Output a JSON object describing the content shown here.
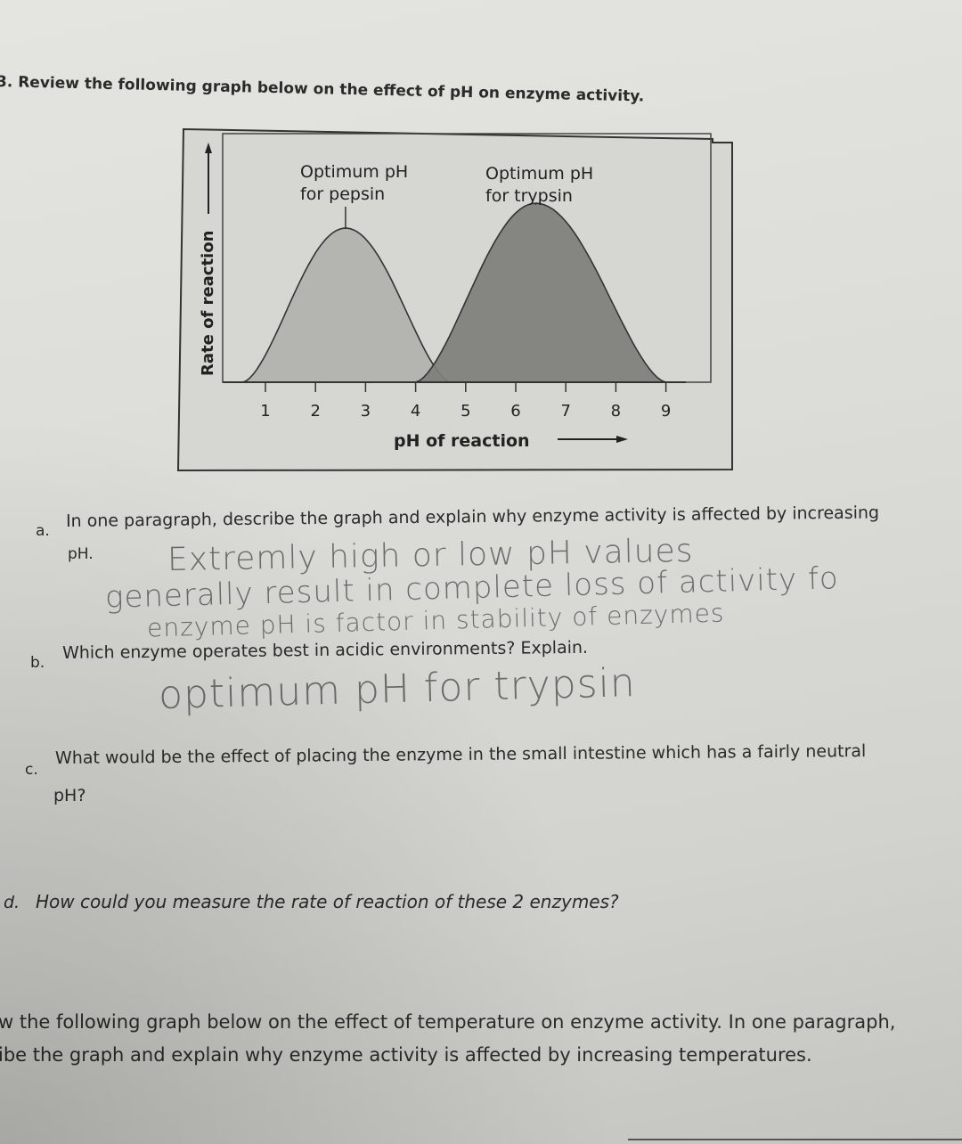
{
  "question3": {
    "prompt": "3. Review the following graph below on the effect of pH on enzyme activity."
  },
  "graph": {
    "ylabel": "Rate of reaction",
    "xlabel": "pH of reaction",
    "xticks": [
      "1",
      "2",
      "3",
      "4",
      "5",
      "6",
      "7",
      "8",
      "9"
    ],
    "annotations": [
      {
        "line1": "Optimum pH",
        "line2": "for pepsin"
      },
      {
        "line1": "Optimum pH",
        "line2": "for trypsin"
      }
    ],
    "colors": {
      "pepsin_fill": "#b4b4b0",
      "trypsin_fill": "#7e7e7a",
      "frame": "#333333",
      "background": "#d6d6d2"
    }
  },
  "chart_data": {
    "type": "area",
    "xlabel": "pH of reaction",
    "ylabel": "Rate of reaction",
    "xlim": [
      0,
      9.4
    ],
    "ylim": [
      0,
      1
    ],
    "series": [
      {
        "name": "pepsin",
        "start": 0.55,
        "peak_x": 2.6,
        "peak_rate": 0.62,
        "end": 4.7
      },
      {
        "name": "trypsin",
        "start": 4.0,
        "peak_x": 6.4,
        "peak_rate": 0.72,
        "end": 9.0
      }
    ]
  },
  "part_a": {
    "label": "a.",
    "question_line1": "In one paragraph, describe the graph and explain why enzyme activity is affected by increasing",
    "question_line2": "pH.",
    "answer_lines": [
      "Extremly high or low pH values",
      "generally result in complete loss of activity fo",
      "enzyme pH is factor in stability of enzymes"
    ]
  },
  "part_b": {
    "label": "b.",
    "question": "Which enzyme operates best in acidic environments? Explain.",
    "answer": "optimum pH for trypsin"
  },
  "part_c": {
    "label": "c.",
    "question_line1": "What would be the effect of placing the enzyme in the small intestine which has a fairly neutral",
    "question_line2": "pH?"
  },
  "part_d": {
    "label": "d.",
    "question": "How could you measure the rate of reaction of these 2 enzymes?"
  },
  "question4": {
    "line1": "w the following graph below on the effect of temperature on enzyme activity. In one paragraph,",
    "line2": "ibe the graph and explain why enzyme activity is affected by increasing temperatures."
  }
}
